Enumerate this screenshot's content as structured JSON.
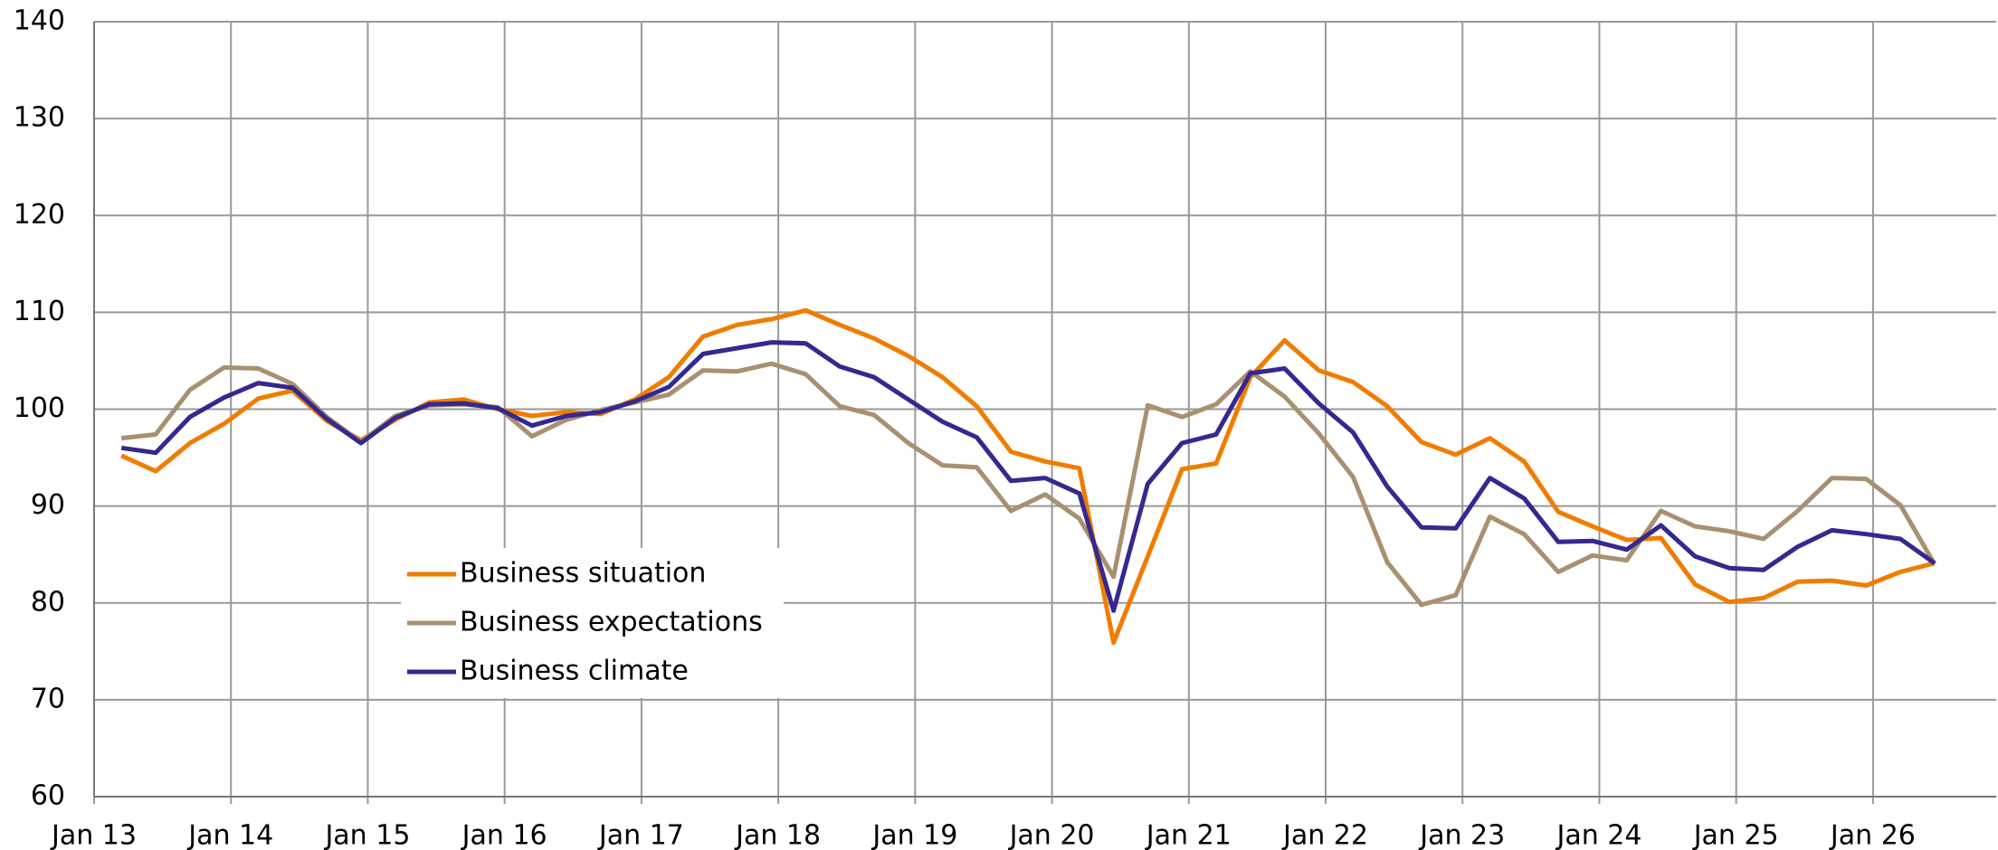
{
  "chart_data": {
    "type": "line",
    "x": [
      13.2,
      13.45,
      13.7,
      13.95,
      14.2,
      14.45,
      14.7,
      14.95,
      15.2,
      15.45,
      15.7,
      15.95,
      16.2,
      16.45,
      16.7,
      16.95,
      17.2,
      17.45,
      17.7,
      17.95,
      18.2,
      18.45,
      18.7,
      18.95,
      19.2,
      19.45,
      19.7,
      19.95,
      20.2,
      20.45,
      20.7,
      20.95,
      21.2,
      21.45,
      21.7,
      21.95,
      22.2,
      22.45,
      22.7,
      22.95,
      23.2,
      23.45,
      23.7,
      23.95,
      24.2,
      24.45,
      24.7,
      24.95,
      25.2,
      25.45,
      25.7,
      25.95,
      26.2,
      26.45
    ],
    "series": [
      {
        "name": "Business situation",
        "color": "#f07c00",
        "values": [
          95.2,
          93.6,
          96.5,
          98.5,
          101.1,
          101.9,
          98.8,
          96.8,
          98.9,
          100.7,
          101.0,
          100.0,
          99.3,
          99.7,
          99.5,
          101.0,
          103.3,
          107.5,
          108.7,
          109.3,
          110.2,
          108.7,
          107.3,
          105.5,
          103.3,
          100.3,
          95.6,
          94.6,
          93.9,
          75.9,
          84.8,
          93.8,
          94.4,
          103.3,
          107.1,
          104.0,
          102.8,
          100.3,
          96.6,
          95.3,
          97.0,
          94.6,
          89.4,
          87.9,
          86.5,
          86.7,
          81.9,
          80.1,
          80.5,
          82.2,
          82.3,
          81.8,
          83.2,
          84.1
        ]
      },
      {
        "name": "Business expectations",
        "color": "#a89070",
        "values": [
          97.0,
          97.4,
          102.0,
          104.3,
          104.2,
          102.6,
          99.2,
          96.6,
          99.3,
          100.4,
          100.5,
          100.2,
          97.2,
          98.9,
          99.9,
          100.7,
          101.5,
          104.0,
          103.9,
          104.7,
          103.6,
          100.3,
          99.4,
          96.5,
          94.2,
          94.0,
          89.5,
          91.2,
          88.7,
          82.7,
          100.4,
          99.2,
          100.5,
          103.9,
          101.3,
          97.5,
          93.0,
          84.2,
          79.8,
          80.8,
          88.9,
          87.1,
          83.2,
          84.9,
          84.4,
          89.5,
          87.9,
          87.4,
          86.6,
          89.5,
          92.9,
          92.8,
          90.1,
          84.0
        ]
      },
      {
        "name": "Business climate",
        "color": "#35288f",
        "values": [
          96.0,
          95.5,
          99.2,
          101.2,
          102.7,
          102.2,
          99.0,
          96.5,
          99.1,
          100.5,
          100.6,
          100.1,
          98.3,
          99.3,
          99.7,
          100.8,
          102.3,
          105.7,
          106.3,
          106.9,
          106.8,
          104.4,
          103.3,
          101.0,
          98.7,
          97.1,
          92.6,
          92.9,
          91.3,
          79.2,
          92.3,
          96.5,
          97.4,
          103.7,
          104.2,
          100.6,
          97.6,
          92.0,
          87.8,
          87.7,
          92.9,
          90.8,
          86.3,
          86.4,
          85.5,
          88.0,
          84.8,
          83.6,
          83.4,
          85.8,
          87.5,
          87.1,
          86.6,
          84.1
        ]
      }
    ],
    "xlim": [
      13,
      26.9
    ],
    "xticks": [
      {
        "value": 13,
        "label": "Jan 13"
      },
      {
        "value": 14,
        "label": "Jan 14"
      },
      {
        "value": 15,
        "label": "Jan 15"
      },
      {
        "value": 16,
        "label": "Jan 16"
      },
      {
        "value": 17,
        "label": "Jan 17"
      },
      {
        "value": 18,
        "label": "Jan 18"
      },
      {
        "value": 19,
        "label": "Jan 19"
      },
      {
        "value": 20,
        "label": "Jan 20"
      },
      {
        "value": 21,
        "label": "Jan 21"
      },
      {
        "value": 22,
        "label": "Jan 22"
      },
      {
        "value": 23,
        "label": "Jan 23"
      },
      {
        "value": 24,
        "label": "Jan 24"
      },
      {
        "value": 25,
        "label": "Jan 25"
      },
      {
        "value": 26,
        "label": "Jan 26"
      }
    ],
    "ylim": [
      60,
      140
    ],
    "yticks": [
      60,
      70,
      80,
      90,
      100,
      110,
      120,
      130,
      140
    ],
    "grid": true
  }
}
